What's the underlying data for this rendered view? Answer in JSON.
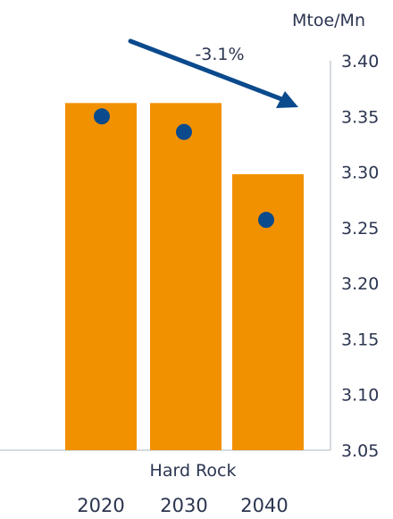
{
  "chart_data": {
    "type": "bar",
    "unit_label": "Mtoe/Mn",
    "categories": [
      "2020",
      "2030",
      "2040"
    ],
    "group_label": "Hard Rock",
    "series": [
      {
        "values": [
          3.362,
          3.362,
          3.298
        ]
      },
      {
        "values": [
          3.35,
          3.336,
          3.257
        ]
      }
    ],
    "annotation": {
      "text": "-3.1%"
    },
    "ylim": [
      3.05,
      3.4
    ],
    "yticks": [
      "3.40",
      "3.35",
      "3.30",
      "3.25",
      "3.20",
      "3.15",
      "3.10",
      "3.05"
    ],
    "grid": false
  },
  "colors": {
    "bar": "#F29100",
    "marker": "#0B4A8C",
    "arrow": "#0B4A8C",
    "axis": "#2b3550"
  }
}
